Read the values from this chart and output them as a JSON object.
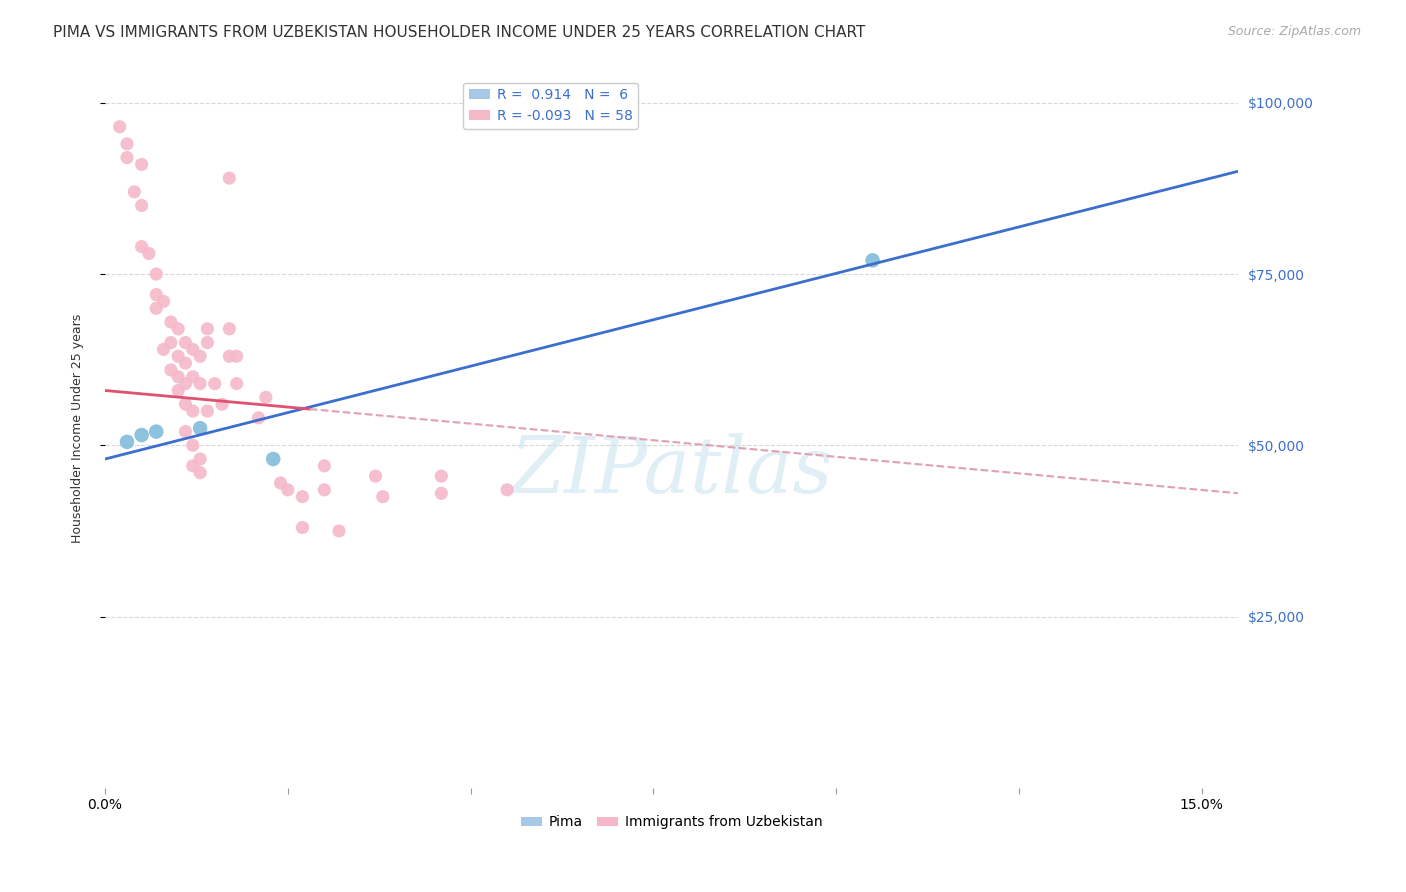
{
  "title": "PIMA VS IMMIGRANTS FROM UZBEKISTAN HOUSEHOLDER INCOME UNDER 25 YEARS CORRELATION CHART",
  "source": "Source: ZipAtlas.com",
  "ylabel_label": "Householder Income Under 25 years",
  "ylim": [
    0,
    105000
  ],
  "xlim": [
    0.0,
    0.155
  ],
  "watermark_zip": "ZIP",
  "watermark_atlas": "atlas",
  "pima_points": [
    [
      0.003,
      50500
    ],
    [
      0.005,
      51500
    ],
    [
      0.007,
      52000
    ],
    [
      0.013,
      52500
    ],
    [
      0.023,
      48000
    ],
    [
      0.105,
      77000
    ]
  ],
  "uzbek_points": [
    [
      0.002,
      96500
    ],
    [
      0.003,
      94000
    ],
    [
      0.003,
      92000
    ],
    [
      0.004,
      87000
    ],
    [
      0.005,
      91000
    ],
    [
      0.005,
      85000
    ],
    [
      0.005,
      79000
    ],
    [
      0.006,
      78000
    ],
    [
      0.007,
      75000
    ],
    [
      0.007,
      72000
    ],
    [
      0.007,
      70000
    ],
    [
      0.008,
      71000
    ],
    [
      0.008,
      64000
    ],
    [
      0.009,
      68000
    ],
    [
      0.009,
      65000
    ],
    [
      0.009,
      61000
    ],
    [
      0.01,
      67000
    ],
    [
      0.01,
      63000
    ],
    [
      0.01,
      60000
    ],
    [
      0.01,
      58000
    ],
    [
      0.011,
      65000
    ],
    [
      0.011,
      62000
    ],
    [
      0.011,
      59000
    ],
    [
      0.011,
      56000
    ],
    [
      0.011,
      52000
    ],
    [
      0.012,
      64000
    ],
    [
      0.012,
      60000
    ],
    [
      0.012,
      55000
    ],
    [
      0.012,
      50000
    ],
    [
      0.012,
      47000
    ],
    [
      0.013,
      63000
    ],
    [
      0.013,
      59000
    ],
    [
      0.013,
      48000
    ],
    [
      0.013,
      46000
    ],
    [
      0.014,
      67000
    ],
    [
      0.014,
      65000
    ],
    [
      0.014,
      55000
    ],
    [
      0.015,
      59000
    ],
    [
      0.016,
      56000
    ],
    [
      0.017,
      89000
    ],
    [
      0.017,
      67000
    ],
    [
      0.017,
      63000
    ],
    [
      0.018,
      63000
    ],
    [
      0.018,
      59000
    ],
    [
      0.021,
      54000
    ],
    [
      0.022,
      57000
    ],
    [
      0.024,
      44500
    ],
    [
      0.025,
      43500
    ],
    [
      0.027,
      42500
    ],
    [
      0.027,
      38000
    ],
    [
      0.03,
      47000
    ],
    [
      0.03,
      43500
    ],
    [
      0.032,
      37500
    ],
    [
      0.037,
      45500
    ],
    [
      0.038,
      42500
    ],
    [
      0.046,
      45500
    ],
    [
      0.046,
      43000
    ],
    [
      0.055,
      43500
    ]
  ],
  "pima_color": "#7ab8d9",
  "uzbek_color": "#f5b8c8",
  "pima_line_color": "#3c6fcd",
  "uzbek_solid_color": "#e05070",
  "uzbek_dash_color": "#e0a0b0",
  "background_color": "#ffffff",
  "grid_color": "#d8d8d8",
  "title_fontsize": 11,
  "axis_label_fontsize": 9,
  "tick_fontsize": 10,
  "legend_fontsize": 10,
  "source_fontsize": 9,
  "pima_r": "0.914",
  "pima_n": "6",
  "uzbek_r": "-0.093",
  "uzbek_n": "58"
}
